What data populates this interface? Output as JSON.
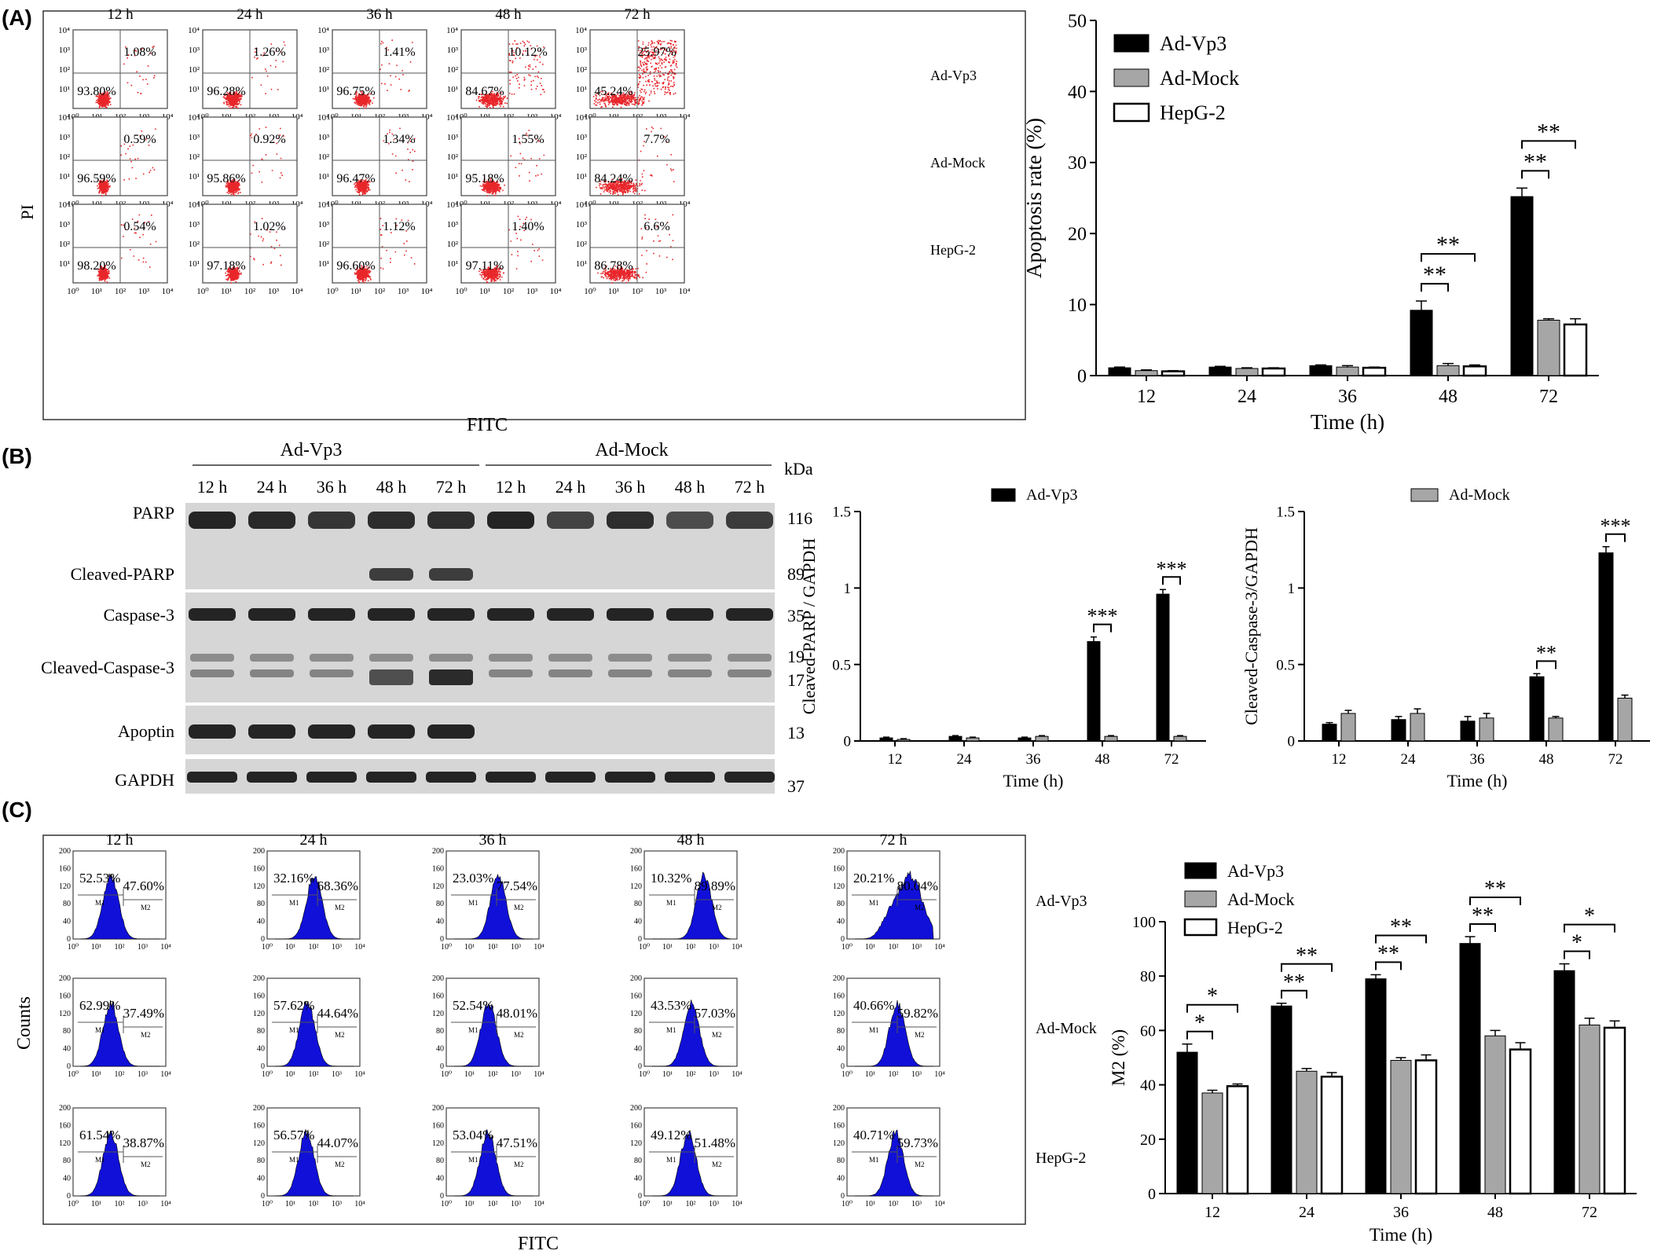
{
  "panel_labels": [
    "(A)",
    "(B)",
    "(C)"
  ],
  "panel_a": {
    "y_label": "PI",
    "x_label": "FITC",
    "col_titles": [
      "12 h",
      "24 h",
      "36 h",
      "48 h",
      "72 h"
    ],
    "row_labels": [
      "Ad-Vp3",
      "Ad-Mock",
      "HepG-2"
    ],
    "tick_labels": [
      "10⁰",
      "10¹",
      "10²",
      "10³",
      "10⁴"
    ],
    "rows": [
      {
        "upper_right": [
          "1.08%",
          "1.26%",
          "1.41%",
          "10.12%",
          "25.97%"
        ],
        "lower_left": [
          "93.80%",
          "96.28%",
          "96.75%",
          "84.67%",
          "45.24%"
        ]
      },
      {
        "upper_right": [
          "0.59%",
          "0.92%",
          "1.34%",
          "1.55%",
          "7.7%"
        ],
        "lower_left": [
          "96.59%",
          "95.86%",
          "96.47%",
          "95.18%",
          "84.24%"
        ]
      },
      {
        "upper_right": [
          "0.54%",
          "1.02%",
          "1.12%",
          "1.40%",
          "6.6%"
        ],
        "lower_left": [
          "98.20%",
          "97.18%",
          "96.60%",
          "97.11%",
          "86.78%"
        ]
      }
    ],
    "dot_color": "#e8262a"
  },
  "panel_b": {
    "group_labels": [
      "Ad-Vp3",
      "Ad-Mock"
    ],
    "kda_label": "kDa",
    "lane_labels": [
      "12 h",
      "24 h",
      "36 h",
      "48 h",
      "72 h",
      "12 h",
      "24 h",
      "36 h",
      "48 h",
      "72 h"
    ],
    "protein_labels": [
      "PARP",
      "Cleaved-PARP",
      "Caspase-3",
      "Cleaved-Caspase-3",
      "Apoptin",
      "GAPDH"
    ],
    "kda_values": [
      "116",
      "89",
      "35",
      "19",
      "17",
      "13",
      "37"
    ]
  },
  "panel_c": {
    "y_label": "Counts",
    "x_label": "FITC",
    "col_titles": [
      "12 h",
      "24 h",
      "36 h",
      "48 h",
      "72 h"
    ],
    "row_labels": [
      "Ad-Vp3",
      "Ad-Mock",
      "HepG-2"
    ],
    "y_ticks": [
      "0",
      "40",
      "80",
      "120",
      "160",
      "200"
    ],
    "tick_labels": [
      "10⁰",
      "10¹",
      "10²",
      "10³",
      "10⁴"
    ],
    "gate_labels": [
      "M1",
      "M2"
    ],
    "rows": [
      {
        "m1": [
          "52.53%",
          "32.16%",
          "23.03%",
          "10.32%",
          "20.21%"
        ],
        "m2": [
          "47.60%",
          "68.36%",
          "77.54%",
          "89.89%",
          "80.04%"
        ]
      },
      {
        "m1": [
          "62.99%",
          "57.62%",
          "52.54%",
          "43.53%",
          "40.66%"
        ],
        "m2": [
          "37.49%",
          "44.64%",
          "48.01%",
          "57.03%",
          "59.82%"
        ]
      },
      {
        "m1": [
          "61.54%",
          "56.57%",
          "53.04%",
          "49.12%",
          "40.71%"
        ],
        "m2": [
          "38.87%",
          "44.07%",
          "47.51%",
          "51.48%",
          "59.73%"
        ]
      }
    ],
    "fill_color": "#1010d8"
  },
  "chart_data": [
    {
      "type": "bar",
      "categories": [
        "12",
        "24",
        "36",
        "48",
        "72"
      ],
      "xlabel": "Time (h)",
      "ylabel": "Apoptosis rate (%)",
      "ylim": [
        0,
        50
      ],
      "yticks": [
        0,
        10,
        20,
        30,
        40,
        50
      ],
      "legend_position": "top-left",
      "series": [
        {
          "name": "Ad-Vp3",
          "color": "#000000",
          "values": [
            1.1,
            1.2,
            1.4,
            9.2,
            25.2
          ],
          "errors": [
            0.1,
            0.1,
            0.1,
            1.3,
            1.2
          ]
        },
        {
          "name": "Ad-Mock",
          "color": "#a6a6a6",
          "values": [
            0.7,
            1.0,
            1.2,
            1.4,
            7.8
          ],
          "errors": [
            0.1,
            0.1,
            0.2,
            0.3,
            0.2
          ]
        },
        {
          "name": "HepG-2",
          "color": "#ffffff",
          "values": [
            0.6,
            1.0,
            1.1,
            1.3,
            7.2
          ],
          "errors": [
            0.1,
            0.1,
            0.1,
            0.2,
            0.8
          ]
        }
      ],
      "annotations": [
        {
          "category": "48",
          "pair": [
            "Ad-Vp3",
            "Ad-Mock"
          ],
          "text": "**"
        },
        {
          "category": "48",
          "pair": [
            "Ad-Vp3",
            "HepG-2"
          ],
          "text": "**"
        },
        {
          "category": "72",
          "pair": [
            "Ad-Vp3",
            "Ad-Mock"
          ],
          "text": "**"
        },
        {
          "category": "72",
          "pair": [
            "Ad-Vp3",
            "HepG-2"
          ],
          "text": "**"
        }
      ]
    },
    {
      "type": "bar",
      "categories": [
        "12",
        "24",
        "36",
        "48",
        "72"
      ],
      "xlabel": "Time (h)",
      "ylabel": "Cleaved-PARP / GAPDH",
      "ylim": [
        0,
        1.5
      ],
      "yticks": [
        0.0,
        0.5,
        1.0,
        1.5
      ],
      "legend_position": "top",
      "series": [
        {
          "name": "Ad-Vp3",
          "color": "#000000",
          "values": [
            0.02,
            0.03,
            0.02,
            0.65,
            0.96
          ],
          "errors": [
            0.005,
            0.005,
            0.005,
            0.03,
            0.03
          ]
        },
        {
          "name": "",
          "color": "#a6a6a6",
          "values": [
            0.01,
            0.02,
            0.03,
            0.03,
            0.03
          ],
          "errors": [
            0.005,
            0.005,
            0.005,
            0.005,
            0.005
          ]
        }
      ],
      "annotations": [
        {
          "category": "48",
          "text": "***"
        },
        {
          "category": "72",
          "text": "***"
        }
      ]
    },
    {
      "type": "bar",
      "categories": [
        "12",
        "24",
        "36",
        "48",
        "72"
      ],
      "xlabel": "Time (h)",
      "ylabel": "Cleaved-Caspase-3/GAPDH",
      "ylim": [
        0,
        1.5
      ],
      "yticks": [
        0.0,
        0.5,
        1.0,
        1.5
      ],
      "legend_position": "top",
      "series": [
        {
          "name": "",
          "color": "#000000",
          "values": [
            0.11,
            0.14,
            0.13,
            0.42,
            1.23
          ],
          "errors": [
            0.01,
            0.02,
            0.03,
            0.02,
            0.04
          ]
        },
        {
          "name": "Ad-Mock",
          "color": "#a6a6a6",
          "values": [
            0.18,
            0.18,
            0.15,
            0.15,
            0.28
          ],
          "errors": [
            0.02,
            0.03,
            0.03,
            0.01,
            0.02
          ]
        }
      ],
      "annotations": [
        {
          "category": "48",
          "text": "**"
        },
        {
          "category": "72",
          "text": "***"
        }
      ]
    },
    {
      "type": "bar",
      "categories": [
        "12",
        "24",
        "36",
        "48",
        "72"
      ],
      "xlabel": "Time (h)",
      "ylabel": "M2 (%)",
      "ylim": [
        0,
        100
      ],
      "yticks": [
        0,
        20,
        40,
        60,
        80,
        100
      ],
      "legend_position": "top-left",
      "series": [
        {
          "name": "Ad-Vp3",
          "color": "#000000",
          "values": [
            52,
            69,
            79,
            92,
            82
          ],
          "errors": [
            3,
            1,
            1.5,
            2.5,
            2.5
          ]
        },
        {
          "name": "Ad-Mock",
          "color": "#a6a6a6",
          "values": [
            37,
            45,
            49,
            58,
            62
          ],
          "errors": [
            1,
            1,
            1,
            2,
            2.5
          ]
        },
        {
          "name": "HepG-2",
          "color": "#ffffff",
          "values": [
            39.5,
            43,
            49,
            53,
            61
          ],
          "errors": [
            0.8,
            1.5,
            2,
            2.5,
            2.5
          ]
        }
      ],
      "annotations": [
        {
          "category": "12",
          "pair": [
            "Ad-Vp3",
            "Ad-Mock"
          ],
          "text": "*"
        },
        {
          "category": "12",
          "pair": [
            "Ad-Vp3",
            "HepG-2"
          ],
          "text": "*"
        },
        {
          "category": "24",
          "pair": [
            "Ad-Vp3",
            "Ad-Mock"
          ],
          "text": "**"
        },
        {
          "category": "24",
          "pair": [
            "Ad-Vp3",
            "HepG-2"
          ],
          "text": "**"
        },
        {
          "category": "36",
          "pair": [
            "Ad-Vp3",
            "Ad-Mock"
          ],
          "text": "**"
        },
        {
          "category": "36",
          "pair": [
            "Ad-Vp3",
            "HepG-2"
          ],
          "text": "**"
        },
        {
          "category": "48",
          "pair": [
            "Ad-Vp3",
            "Ad-Mock"
          ],
          "text": "**"
        },
        {
          "category": "48",
          "pair": [
            "Ad-Vp3",
            "HepG-2"
          ],
          "text": "**"
        },
        {
          "category": "72",
          "pair": [
            "Ad-Vp3",
            "Ad-Mock"
          ],
          "text": "*"
        },
        {
          "category": "72",
          "pair": [
            "Ad-Vp3",
            "HepG-2"
          ],
          "text": "*"
        }
      ]
    }
  ]
}
